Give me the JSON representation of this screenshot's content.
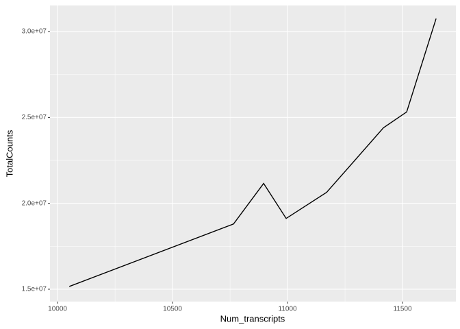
{
  "chart_data": {
    "type": "line",
    "x_label": "Num_transcripts",
    "y_label": "TotalCounts",
    "x": [
      10051,
      10765,
      10896,
      10994,
      11170,
      11417,
      11518,
      11646
    ],
    "series": [
      {
        "color": "#000000",
        "values": [
          15160000,
          18800000,
          21160000,
          19120000,
          20640000,
          24400000,
          25320000,
          30760000
        ]
      }
    ],
    "xlim": [
      9967,
      11732
    ],
    "xticks": [
      10000,
      10500,
      11000,
      11500
    ],
    "ylim": [
      14280000,
      31520000
    ],
    "yticks": [
      {
        "value": 15000000,
        "label": "1.5e+07"
      },
      {
        "value": 20000000,
        "label": "2.0e+07"
      },
      {
        "value": 25000000,
        "label": "2.5e+07"
      },
      {
        "value": 30000000,
        "label": "3.0e+07"
      }
    ],
    "grid": true
  }
}
